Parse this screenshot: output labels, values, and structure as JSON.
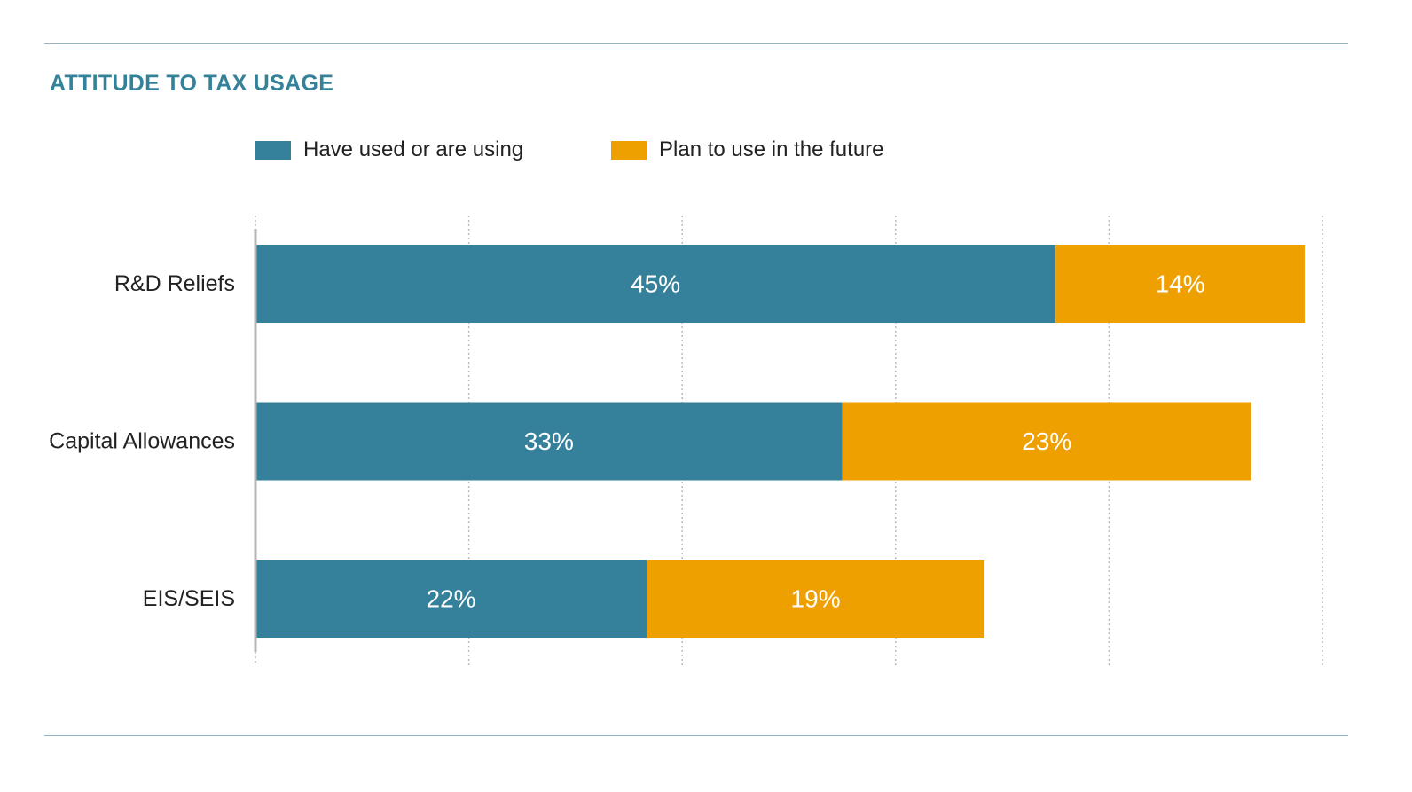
{
  "chart_data": {
    "type": "bar",
    "orientation": "horizontal",
    "stacked": true,
    "title": "ATTITUDE TO TAX USAGE",
    "categories": [
      "R&D Reliefs",
      "Capital Allowances",
      "EIS/SEIS"
    ],
    "series": [
      {
        "name": "Have used or are using",
        "color": "#35809a",
        "values": [
          45,
          33,
          22
        ],
        "labels": [
          "45%",
          "33%",
          "22%"
        ]
      },
      {
        "name": "Plan to use in the future",
        "color": "#eea000",
        "values": [
          14,
          23,
          19
        ],
        "labels": [
          "14%",
          "23%",
          "19%"
        ]
      }
    ],
    "xlim": [
      0,
      60
    ],
    "x_gridlines": [
      0,
      12,
      24,
      36,
      48,
      60
    ],
    "grid": "dotted-vertical",
    "legend_position": "top"
  },
  "colors": {
    "title": "#34819a",
    "rule": "#8fb3c2",
    "axis": "#b5b5b5",
    "grid": "#bcbcbc"
  }
}
